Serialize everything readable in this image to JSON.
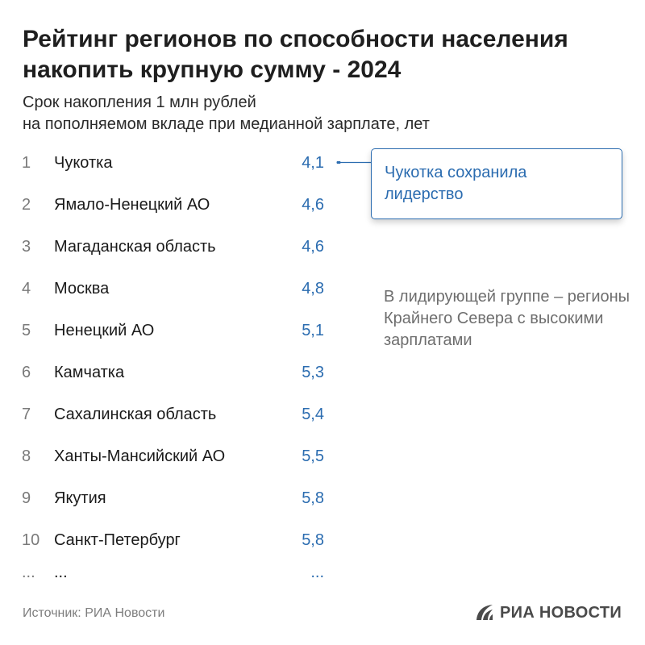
{
  "title": "Рейтинг регионов по способности населения накопить крупную сумму - 2024",
  "subtitle_line1": "Срок накопления 1 млн рублей",
  "subtitle_line2": "на пополняемом вкладе при медианной зарплате, лет",
  "colors": {
    "value": "#2b6cb0",
    "rank": "#7a7a7a",
    "note": "#6e6e6e"
  },
  "chart_data": {
    "type": "table",
    "title": "Рейтинг регионов по способности населения накопить крупную сумму - 2024",
    "subtitle": "Срок накопления 1 млн рублей на пополняемом вкладе при медианной зарплате, лет",
    "columns": [
      "rank",
      "region",
      "value"
    ],
    "rows": [
      {
        "rank": "1",
        "region": "Чукотка",
        "value": "4,1"
      },
      {
        "rank": "2",
        "region": "Ямало-Ненецкий АО",
        "value": "4,6"
      },
      {
        "rank": "3",
        "region": "Магаданская область",
        "value": "4,6"
      },
      {
        "rank": "4",
        "region": "Москва",
        "value": "4,8"
      },
      {
        "rank": "5",
        "region": "Ненецкий АО",
        "value": "5,1"
      },
      {
        "rank": "6",
        "region": "Камчатка",
        "value": "5,3"
      },
      {
        "rank": "7",
        "region": "Сахалинская область",
        "value": "5,4"
      },
      {
        "rank": "8",
        "region": "Ханты-Мансийский АО",
        "value": "5,5"
      },
      {
        "rank": "9",
        "region": "Якутия",
        "value": "5,8"
      },
      {
        "rank": "10",
        "region": "Санкт-Петербург",
        "value": "5,8"
      }
    ],
    "continuation": {
      "rank": "...",
      "region": "...",
      "value": "..."
    },
    "annotations": [
      "Чукотка сохранила лидерство",
      "В лидирующей группе – регионы Крайнего Севера с высокими зарплатами"
    ]
  },
  "callout_text": "Чукотка сохранила лидерство",
  "note_text": "В лидирующей группе – регионы Крайнего Севера с высокими зарплатами",
  "source": "Источник: РИА Новости",
  "logo_text": "РИА НОВОСТИ",
  "logo_icon": "ria-novosti-logo-icon"
}
